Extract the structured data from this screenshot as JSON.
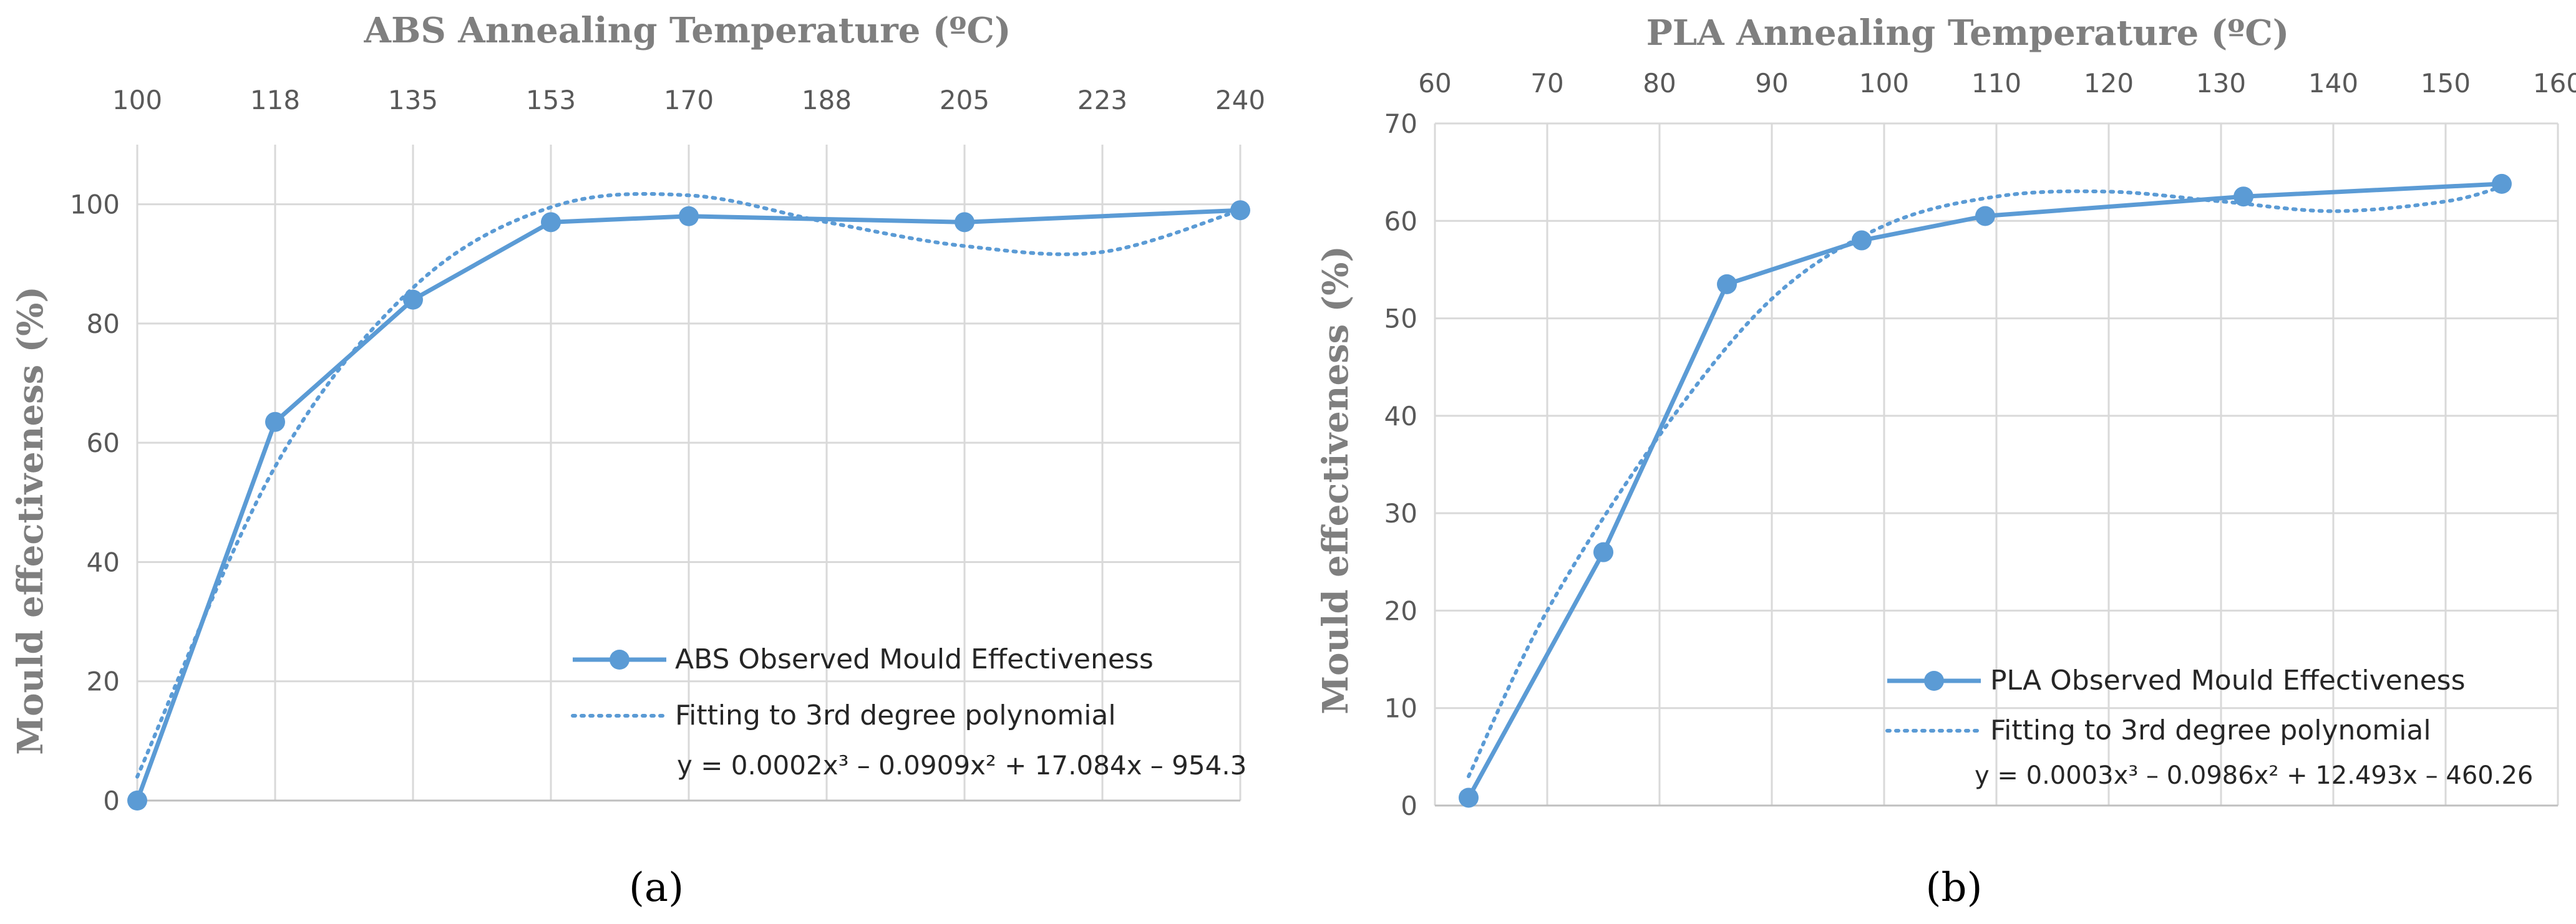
{
  "colors": {
    "series": "#5b9bd5",
    "grid": "#d9d9d9",
    "axis_title": "#7f7f7f",
    "tick": "#595959"
  },
  "chart_data": [
    {
      "type": "line",
      "panel_label": "(a)",
      "title": "ABS Annealing Temperature (ºC)",
      "xlabel": "ABS Annealing Temperature (ºC)",
      "ylabel": "Mould effectiveness (%)",
      "xlim": [
        100,
        240
      ],
      "ylim": [
        0,
        110
      ],
      "xticks": [
        "100",
        "118",
        "135",
        "153",
        "170",
        "188",
        "205",
        "223",
        "240"
      ],
      "xtick_values": [
        100,
        117.5,
        135,
        152.5,
        170,
        187.5,
        205,
        222.5,
        240
      ],
      "yticks": [
        0,
        20,
        40,
        60,
        80,
        100
      ],
      "grid": true,
      "legend_position": "bottom-right",
      "series": [
        {
          "name": "ABS Observed Mould Effectiveness",
          "style": "solid-markers",
          "x": [
            100,
            117.5,
            135,
            152.5,
            170,
            205,
            240
          ],
          "y": [
            0,
            63.5,
            84,
            97,
            98,
            97,
            99
          ]
        },
        {
          "name": "Fitting to 3rd degree polynomial",
          "style": "dotted",
          "x": [
            100,
            117.5,
            135,
            152.5,
            170,
            187.5,
            205,
            222.5,
            240
          ],
          "y": [
            4,
            56,
            86,
            99.5,
            101.5,
            97,
            93,
            92,
            99
          ]
        }
      ],
      "equation": "y = 0.0002x³ – 0.0909x² + 17.084x – 954.3"
    },
    {
      "type": "line",
      "panel_label": "(b)",
      "title": "PLA Annealing Temperature (ºC)",
      "xlabel": "PLA Annealing Temperature (ºC)",
      "ylabel": "Mould effectiveness (%)",
      "xlim": [
        60,
        160
      ],
      "ylim": [
        0,
        70
      ],
      "xticks": [
        "60",
        "70",
        "80",
        "90",
        "100",
        "110",
        "120",
        "130",
        "140",
        "150",
        "160"
      ],
      "xtick_values": [
        60,
        70,
        80,
        90,
        100,
        110,
        120,
        130,
        140,
        150,
        160
      ],
      "yticks": [
        0,
        10,
        20,
        30,
        40,
        50,
        60,
        70
      ],
      "grid": true,
      "legend_position": "bottom-right",
      "series": [
        {
          "name": "PLA Observed Mould Effectiveness",
          "style": "solid-markers",
          "x": [
            63,
            75,
            86,
            98,
            109,
            132,
            155
          ],
          "y": [
            0.8,
            26,
            53.5,
            58,
            60.5,
            62.5,
            63.8
          ]
        },
        {
          "name": "Fitting to 3rd degree polynomial",
          "style": "dotted",
          "x": [
            63,
            70,
            80,
            90,
            100,
            110,
            120,
            130,
            140,
            150,
            155
          ],
          "y": [
            3,
            20,
            38,
            52,
            59.5,
            62.5,
            63,
            62,
            61,
            62,
            63.5
          ]
        }
      ],
      "equation": "y = 0.0003x³ – 0.0986x² + 12.493x – 460.26"
    }
  ]
}
